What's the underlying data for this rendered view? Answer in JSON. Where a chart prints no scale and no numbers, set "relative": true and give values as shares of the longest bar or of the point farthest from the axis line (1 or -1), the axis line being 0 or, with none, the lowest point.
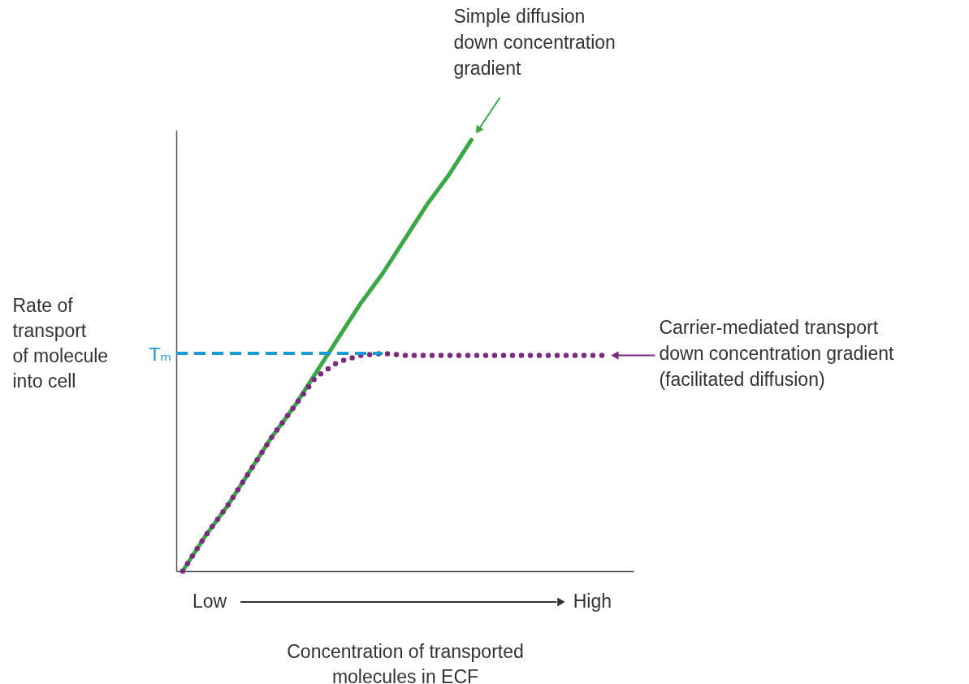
{
  "chart_data": {
    "type": "line",
    "relative": true,
    "xlabel": "Concentration of transported\nmolecules in ECF",
    "ylabel": "Rate of\ntransport\nof molecule\ninto cell",
    "categories": [
      null,
      null,
      null,
      null,
      null,
      null,
      null,
      null,
      null,
      null,
      null,
      null,
      null,
      null,
      null,
      null,
      null,
      null,
      null,
      null
    ],
    "series": [
      {
        "name": "Simple diffusion\ndown concentration\ngradient",
        "color": "#3aa845",
        "line_style": "solid",
        "values": [
          0,
          0.08,
          0.15,
          0.23,
          0.31,
          0.38,
          0.46,
          0.54,
          0.62,
          0.69,
          0.77,
          0.85,
          0.92,
          1,
          null,
          null,
          null,
          null,
          null,
          null
        ]
      },
      {
        "name": "Carrier-mediated transport\ndown concentration gradient\n(facilitated diffusion)",
        "color": "#7b2a82",
        "line_style": "dotted",
        "values": [
          0,
          0.08,
          0.15,
          0.23,
          0.31,
          0.38,
          0.45,
          0.485,
          0.5,
          0.505,
          0.5,
          0.5,
          0.5,
          0.5,
          0.5,
          0.5,
          0.5,
          0.5,
          0.5,
          0.5
        ]
      }
    ],
    "ref_lines": [
      {
        "axis": "y",
        "value": 0.505,
        "label": "Tₘ",
        "color": "#1a9ad6",
        "line_style": "dashed"
      }
    ],
    "annotations": [
      "Low",
      "High"
    ],
    "grid": false
  }
}
